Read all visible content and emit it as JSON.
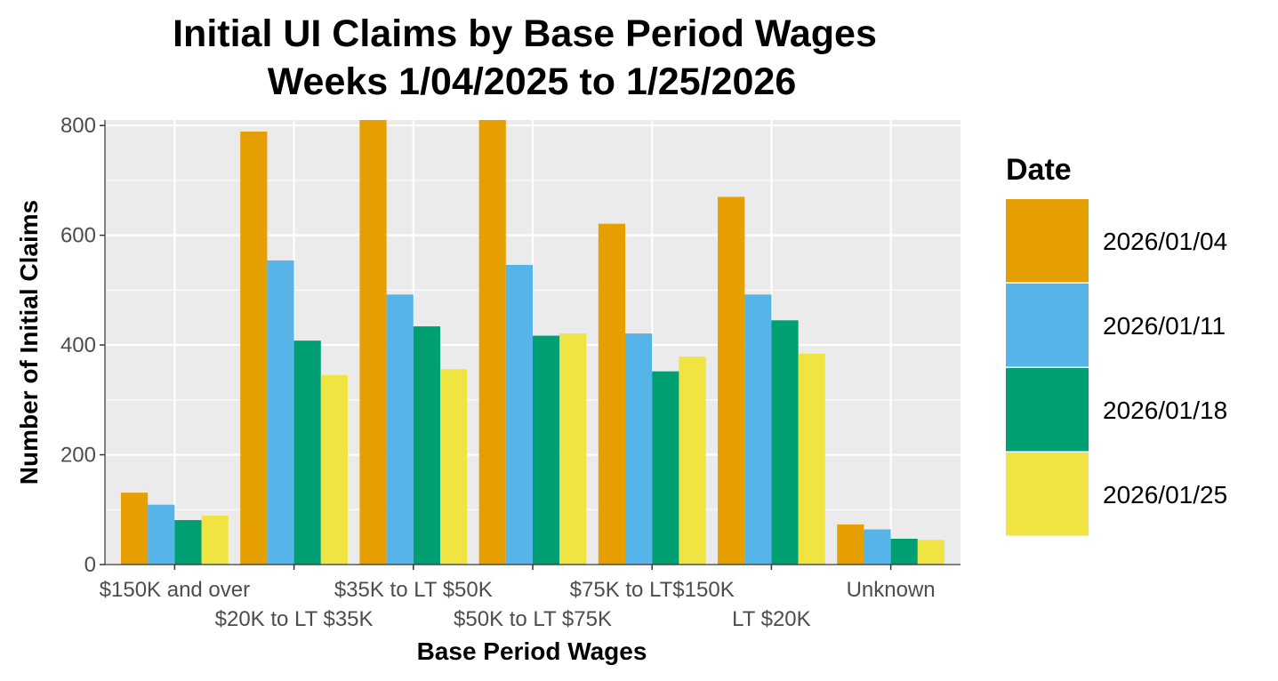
{
  "chart_data": {
    "type": "bar",
    "title": "Initial UI Claims by Base Period Wages",
    "subtitle": "Weeks 1/04/2025 to 1/25/2026",
    "xlabel": "Base Period Wages",
    "ylabel": "Number of Initial Claims",
    "ylim": [
      0,
      810
    ],
    "yticks": [
      0,
      200,
      400,
      600,
      800
    ],
    "grid": true,
    "legend_title": "Date",
    "legend_position": "right",
    "categories": [
      "$150K and over",
      "$20K to LT $35K",
      "$35K to LT $50K",
      "$50K to LT $75K",
      "$75K to LT$150K",
      "LT $20K",
      "Unknown"
    ],
    "series": [
      {
        "name": "2026/01/04",
        "color": "#E69F00",
        "values": [
          131,
          789,
          810,
          813,
          621,
          670,
          73
        ]
      },
      {
        "name": "2026/01/11",
        "color": "#56B4E9",
        "values": [
          109,
          554,
          492,
          546,
          421,
          492,
          64
        ]
      },
      {
        "name": "2026/01/18",
        "color": "#009E73",
        "values": [
          81,
          408,
          434,
          417,
          352,
          445,
          47
        ]
      },
      {
        "name": "2026/01/25",
        "color": "#F0E442",
        "values": [
          89,
          345,
          356,
          421,
          379,
          384,
          45
        ]
      }
    ]
  }
}
